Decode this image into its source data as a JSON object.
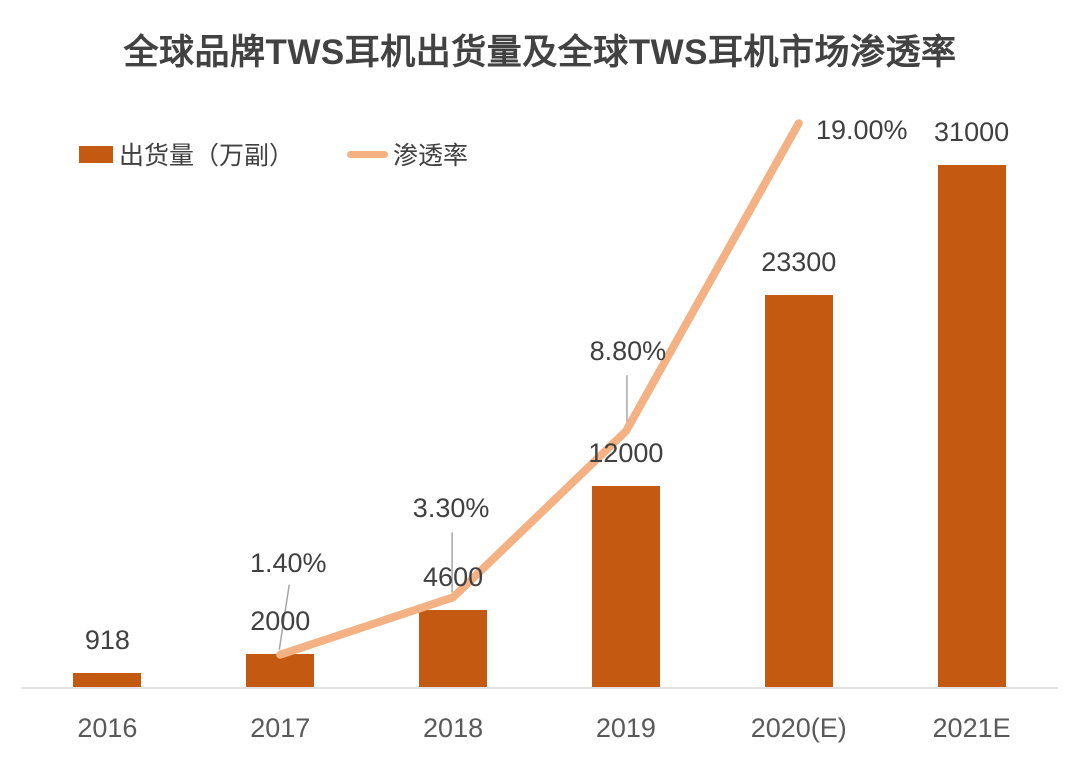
{
  "title": "全球品牌TWS耳机出货量及全球TWS耳机市场渗透率",
  "legend": {
    "shipments_label": "出货量（万副）",
    "penetration_label": "渗透率"
  },
  "colors": {
    "bar_fill": "#C45A11",
    "line_stroke": "#F4B183",
    "title_text": "#424242",
    "data_label_text": "#404040",
    "axis_label_text": "#595959",
    "axis_line": "#E2E2E2",
    "leader_line": "#A6A6A6",
    "background": "#FFFFFF"
  },
  "chart_data": {
    "type": "bar",
    "combo": "bar+line",
    "title": "全球品牌TWS耳机出货量及全球TWS耳机市场渗透率",
    "categories": [
      "2016",
      "2017",
      "2018",
      "2019",
      "2020(E)",
      "2021E"
    ],
    "series": [
      {
        "name": "出货量（万副）",
        "type": "bar",
        "axis": "primary",
        "values": [
          918,
          2000,
          4600,
          12000,
          23300,
          31000
        ],
        "data_labels": [
          "918",
          "2000",
          "4600",
          "12000",
          "23300",
          "31000"
        ]
      },
      {
        "name": "渗透率",
        "type": "line",
        "axis": "secondary",
        "values": [
          null,
          1.4,
          3.3,
          8.8,
          19.0,
          null
        ],
        "data_labels": [
          null,
          "1.40%",
          "3.30%",
          "8.80%",
          "19.00%",
          null
        ]
      }
    ],
    "xlabel": "",
    "ylabel": "",
    "legend_position": "top-left",
    "grid": false,
    "axes_visible": {
      "x_line": true,
      "y_left": false,
      "y_right": false
    }
  }
}
